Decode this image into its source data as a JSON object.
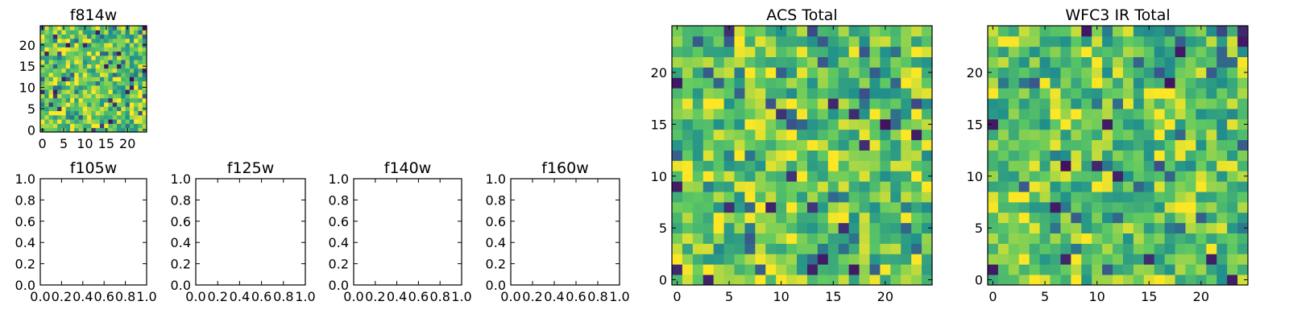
{
  "figure": {
    "background": "#ffffff",
    "axis_color": "#000000"
  },
  "chart_data": [
    {
      "id": "f814w",
      "type": "heatmap",
      "title": "f814w",
      "grid_size": 25,
      "xlim": [
        -0.5,
        24.5
      ],
      "ylim": [
        -0.5,
        24.5
      ],
      "xticks": [
        0,
        5,
        10,
        15,
        20
      ],
      "yticks": [
        0,
        5,
        10,
        15,
        20
      ],
      "colormap": [
        "#440154",
        "#3b528b",
        "#21918c",
        "#5ec962",
        "#fde725"
      ],
      "value_range": [
        0,
        1
      ],
      "seed": 17,
      "bias": 0.1
    },
    {
      "id": "f105w",
      "type": "heatmap",
      "title": "f105w",
      "empty": true,
      "xlim": [
        0,
        1
      ],
      "ylim": [
        0,
        1
      ],
      "xticks": [
        "0.0",
        "0.2",
        "0.4",
        "0.6",
        "0.8",
        "1.0"
      ],
      "yticks": [
        "0.0",
        "0.2",
        "0.4",
        "0.6",
        "0.8",
        "1.0"
      ]
    },
    {
      "id": "f125w",
      "type": "heatmap",
      "title": "f125w",
      "empty": true,
      "xlim": [
        0,
        1
      ],
      "ylim": [
        0,
        1
      ],
      "xticks": [
        "0.0",
        "0.2",
        "0.4",
        "0.6",
        "0.8",
        "1.0"
      ],
      "yticks": [
        "0.0",
        "0.2",
        "0.4",
        "0.6",
        "0.8",
        "1.0"
      ]
    },
    {
      "id": "f140w",
      "type": "heatmap",
      "title": "f140w",
      "empty": true,
      "xlim": [
        0,
        1
      ],
      "ylim": [
        0,
        1
      ],
      "xticks": [
        "0.0",
        "0.2",
        "0.4",
        "0.6",
        "0.8",
        "1.0"
      ],
      "yticks": [
        "0.0",
        "0.2",
        "0.4",
        "0.6",
        "0.8",
        "1.0"
      ]
    },
    {
      "id": "f160w",
      "type": "heatmap",
      "title": "f160w",
      "empty": true,
      "xlim": [
        0,
        1
      ],
      "ylim": [
        0,
        1
      ],
      "xticks": [
        "0.0",
        "0.2",
        "0.4",
        "0.6",
        "0.8",
        "1.0"
      ],
      "yticks": [
        "0.0",
        "0.2",
        "0.4",
        "0.6",
        "0.8",
        "1.0"
      ]
    },
    {
      "id": "acs-total",
      "type": "heatmap",
      "title": "ACS Total",
      "grid_size": 25,
      "xlim": [
        -0.5,
        24.5
      ],
      "ylim": [
        -0.5,
        24.5
      ],
      "xticks": [
        0,
        5,
        10,
        15,
        20
      ],
      "yticks": [
        0,
        5,
        10,
        15,
        20
      ],
      "colormap": [
        "#440154",
        "#3b528b",
        "#21918c",
        "#5ec962",
        "#fde725"
      ],
      "value_range": [
        0,
        1
      ],
      "seed": 41,
      "bias": 0.08
    },
    {
      "id": "wfc3-ir-total",
      "type": "heatmap",
      "title": "WFC3 IR Total",
      "grid_size": 25,
      "xlim": [
        -0.5,
        24.5
      ],
      "ylim": [
        -0.5,
        24.5
      ],
      "xticks": [
        0,
        5,
        10,
        15,
        20
      ],
      "yticks": [
        0,
        5,
        10,
        15,
        20
      ],
      "colormap": [
        "#440154",
        "#3b528b",
        "#21918c",
        "#5ec962",
        "#fde725"
      ],
      "value_range": [
        0,
        1
      ],
      "seed": 93,
      "bias": 0.06
    }
  ]
}
